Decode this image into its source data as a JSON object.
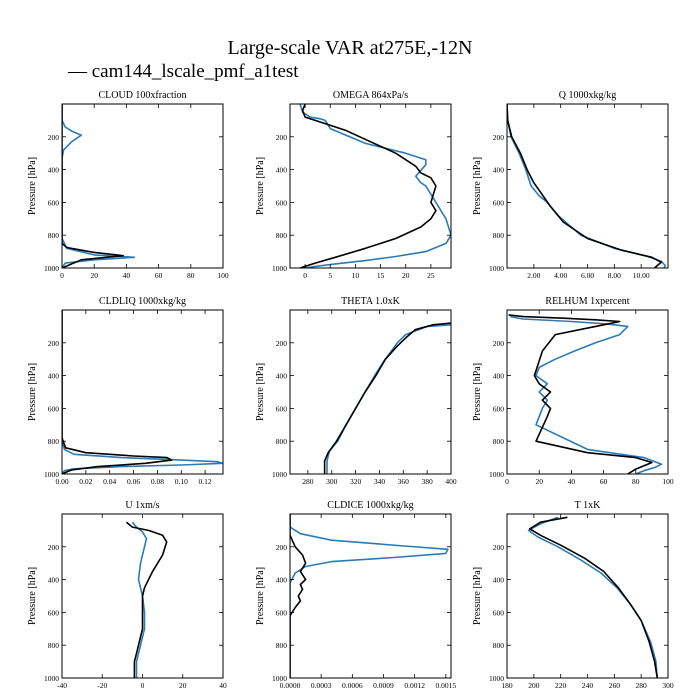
{
  "figure": {
    "title": "Large-scale VAR at275E,-12N",
    "legend_label": "— cam144_lscale_pmf_a1test",
    "legend_color": "#2b7bb9",
    "control_color": "#000000"
  },
  "chart_data": [
    {
      "type": "line",
      "title": "CLOUD  100xfraction",
      "xlim": [
        0,
        100
      ],
      "ylim": [
        1000,
        0
      ],
      "ylabel": "Pressure [hPa]",
      "xticks": [
        "0",
        "20",
        "40",
        "60",
        "80",
        "100"
      ],
      "xtick_values": [
        0,
        20,
        40,
        60,
        80,
        100
      ],
      "yticks": [
        "200",
        "400",
        "600",
        "800",
        "1000"
      ],
      "ytick_values": [
        200,
        400,
        600,
        800,
        1000
      ],
      "series": [
        {
          "color": "#2b7bb9",
          "x": [
            0,
            0,
            2,
            6,
            12,
            6,
            1,
            0,
            0,
            0,
            3,
            20,
            45,
            20,
            2,
            0
          ],
          "y": [
            0,
            100,
            140,
            165,
            190,
            230,
            280,
            330,
            600,
            820,
            880,
            920,
            935,
            950,
            970,
            1000
          ]
        },
        {
          "color": "#000000",
          "x": [
            0,
            0,
            0,
            3,
            20,
            38,
            12,
            0
          ],
          "y": [
            0,
            600,
            850,
            875,
            905,
            925,
            950,
            1000
          ]
        }
      ]
    },
    {
      "type": "line",
      "title": "OMEGA  864xPa/s",
      "xlim": [
        -3,
        29
      ],
      "ylim": [
        1000,
        0
      ],
      "ylabel": "Pressure [hPa]",
      "xticks": [
        "0",
        "5",
        "10",
        "15",
        "20",
        "25"
      ],
      "xtick_values": [
        0,
        5,
        10,
        15,
        20,
        25
      ],
      "yticks": [
        "200",
        "400",
        "600",
        "800",
        "1000"
      ],
      "ytick_values": [
        200,
        400,
        600,
        800,
        1000
      ],
      "series": [
        {
          "color": "#2b7bb9",
          "x": [
            -1,
            -0.5,
            1,
            3,
            4,
            5,
            12,
            20,
            24,
            24,
            22,
            23,
            24,
            26,
            28,
            29,
            28,
            24,
            18,
            12,
            6,
            2,
            0,
            -1
          ],
          "y": [
            0,
            50,
            80,
            90,
            100,
            150,
            240,
            300,
            340,
            370,
            440,
            480,
            500,
            600,
            700,
            800,
            850,
            900,
            930,
            955,
            975,
            990,
            1000,
            1000
          ]
        },
        {
          "color": "#000000",
          "x": [
            0,
            -0.5,
            0,
            2,
            8,
            18,
            22,
            23,
            25,
            26,
            25,
            26,
            25,
            23,
            18,
            12,
            6,
            2,
            0,
            -1
          ],
          "y": [
            0,
            40,
            80,
            100,
            160,
            300,
            380,
            420,
            450,
            500,
            600,
            650,
            700,
            750,
            820,
            880,
            935,
            970,
            990,
            1000
          ]
        }
      ]
    },
    {
      "type": "line",
      "title": "Q  1000xkg/kg",
      "xlim": [
        0,
        12
      ],
      "ylim": [
        1000,
        0
      ],
      "ylabel": "Pressure [hPa]",
      "xticks": [
        "2.00",
        "4.00",
        "6.00",
        "8.00",
        "10.00"
      ],
      "xtick_values": [
        2,
        4,
        6,
        8,
        10
      ],
      "yticks": [
        "200",
        "400",
        "600",
        "800",
        "1000"
      ],
      "ytick_values": [
        200,
        400,
        600,
        800,
        1000
      ],
      "series": [
        {
          "color": "#2b7bb9",
          "x": [
            0,
            0.05,
            0.3,
            0.9,
            1.4,
            1.8,
            2.4,
            3.0,
            3.8,
            5.5,
            8.0,
            10.5,
            11.5,
            11.8,
            11.7
          ],
          "y": [
            0,
            100,
            200,
            300,
            400,
            500,
            560,
            600,
            680,
            800,
            880,
            930,
            960,
            985,
            1000
          ]
        },
        {
          "color": "#000000",
          "x": [
            0,
            0.05,
            0.35,
            1.0,
            1.5,
            2.0,
            2.6,
            3.2,
            4.2,
            6.0,
            8.5,
            10.8,
            11.5,
            11.2,
            11.0
          ],
          "y": [
            0,
            100,
            200,
            300,
            400,
            480,
            550,
            620,
            720,
            820,
            890,
            935,
            965,
            985,
            1000
          ]
        }
      ]
    },
    {
      "type": "line",
      "title": "CLDLIQ  1000xkg/kg",
      "xlim": [
        0,
        0.135
      ],
      "ylim": [
        1000,
        0
      ],
      "ylabel": "Pressure [hPa]",
      "xticks": [
        "0.00",
        "0.02",
        "0.04",
        "0.06",
        "0.08",
        "0.10",
        "0.12"
      ],
      "xtick_values": [
        0,
        0.02,
        0.04,
        0.06,
        0.08,
        0.1,
        0.12
      ],
      "yticks": [
        "200",
        "400",
        "600",
        "800",
        "1000"
      ],
      "ytick_values": [
        200,
        400,
        600,
        800,
        1000
      ],
      "series": [
        {
          "color": "#2b7bb9",
          "x": [
            0,
            0,
            0.002,
            0.01,
            0.05,
            0.1,
            0.13,
            0.135,
            0.1,
            0.05,
            0.01,
            0.002,
            0
          ],
          "y": [
            0,
            800,
            850,
            880,
            900,
            915,
            925,
            935,
            945,
            955,
            968,
            980,
            1000
          ]
        },
        {
          "color": "#000000",
          "x": [
            0,
            0,
            0.003,
            0.02,
            0.06,
            0.088,
            0.092,
            0.07,
            0.03,
            0.008,
            0
          ],
          "y": [
            0,
            780,
            840,
            870,
            890,
            900,
            915,
            935,
            955,
            975,
            1000
          ]
        }
      ]
    },
    {
      "type": "line",
      "title": "THETA  1.0xK",
      "xlim": [
        265,
        400
      ],
      "ylim": [
        1000,
        0
      ],
      "ylabel": "Pressure [hPa]",
      "xticks": [
        "280",
        "300",
        "320",
        "340",
        "360",
        "380",
        "400"
      ],
      "xtick_values": [
        280,
        300,
        320,
        340,
        360,
        380,
        400
      ],
      "yticks": [
        "200",
        "400",
        "600",
        "800",
        "1000"
      ],
      "ytick_values": [
        200,
        400,
        600,
        800,
        1000
      ],
      "series": [
        {
          "color": "#2b7bb9",
          "x": [
            400,
            380,
            362,
            355,
            350,
            343,
            336,
            328,
            320,
            312,
            305,
            298,
            296,
            296
          ],
          "y": [
            90,
            100,
            150,
            200,
            250,
            320,
            400,
            500,
            600,
            700,
            800,
            860,
            920,
            1000
          ]
        },
        {
          "color": "#000000",
          "x": [
            400,
            385,
            370,
            362,
            355,
            345,
            337,
            328,
            320,
            312,
            304,
            297,
            294,
            294
          ],
          "y": [
            80,
            90,
            120,
            170,
            220,
            300,
            400,
            500,
            600,
            700,
            800,
            870,
            920,
            1000
          ]
        }
      ]
    },
    {
      "type": "line",
      "title": "RELHUM  1xpercent",
      "xlim": [
        0,
        100
      ],
      "ylim": [
        1000,
        0
      ],
      "ylabel": "Pressure [hPa]",
      "xticks": [
        "0",
        "20",
        "40",
        "60",
        "80",
        "100"
      ],
      "xtick_values": [
        0,
        20,
        40,
        60,
        80,
        100
      ],
      "yticks": [
        "200",
        "400",
        "600",
        "800",
        "1000"
      ],
      "ytick_values": [
        200,
        400,
        600,
        800,
        1000
      ],
      "series": [
        {
          "color": "#2b7bb9",
          "x": [
            2,
            10,
            40,
            62,
            75,
            70,
            55,
            42,
            30,
            20,
            18,
            25,
            20,
            25,
            22,
            18,
            50,
            85,
            96,
            92,
            85,
            80
          ],
          "y": [
            40,
            55,
            70,
            85,
            100,
            150,
            200,
            250,
            300,
            350,
            400,
            450,
            500,
            550,
            600,
            700,
            850,
            900,
            940,
            960,
            980,
            1000
          ]
        },
        {
          "color": "#000000",
          "x": [
            1,
            10,
            35,
            55,
            70,
            60,
            45,
            30,
            22,
            17,
            20,
            27,
            22,
            27,
            25,
            18,
            50,
            80,
            90,
            80,
            75
          ],
          "y": [
            30,
            40,
            50,
            60,
            70,
            90,
            120,
            150,
            250,
            400,
            450,
            500,
            550,
            600,
            650,
            800,
            870,
            900,
            930,
            970,
            1000
          ]
        }
      ]
    },
    {
      "type": "line",
      "title": "U  1xm/s",
      "xlim": [
        -40,
        40
      ],
      "ylim": [
        1000,
        0
      ],
      "ylabel": "Pressure [hPa]",
      "xticks": [
        "-40",
        "-20",
        "0",
        "20",
        "40"
      ],
      "xtick_values": [
        -40,
        -20,
        0,
        20,
        40
      ],
      "yticks": [
        "200",
        "400",
        "600",
        "800",
        "1000"
      ],
      "ytick_values": [
        200,
        400,
        600,
        800,
        1000
      ],
      "series": [
        {
          "color": "#2b7bb9",
          "x": [
            -5,
            -3,
            0,
            2,
            1,
            -1,
            -2,
            0,
            1,
            1,
            0,
            -1,
            -2,
            -3,
            -3
          ],
          "y": [
            50,
            80,
            110,
            150,
            200,
            300,
            400,
            500,
            600,
            700,
            750,
            800,
            850,
            900,
            1000
          ]
        },
        {
          "color": "#000000",
          "x": [
            -8,
            -5,
            3,
            10,
            12,
            10,
            5,
            1,
            0,
            0,
            0,
            -1,
            -2,
            -3,
            -4,
            -4
          ],
          "y": [
            50,
            80,
            100,
            130,
            170,
            250,
            350,
            450,
            500,
            600,
            700,
            750,
            800,
            850,
            900,
            1000
          ]
        }
      ]
    },
    {
      "type": "line",
      "title": "CLDICE  1000xkg/kg",
      "xlim": [
        0,
        0.00155
      ],
      "ylim": [
        1000,
        0
      ],
      "ylabel": "Pressure [hPa]",
      "xticks": [
        "0.0000",
        "0.0003",
        "0.0006",
        "0.0009",
        "0.0012",
        "0.0015"
      ],
      "xtick_values": [
        0,
        0.0003,
        0.0006,
        0.0009,
        0.0012,
        0.0015
      ],
      "yticks": [
        "200",
        "400",
        "600",
        "800",
        "1000"
      ],
      "ytick_values": [
        200,
        400,
        600,
        800,
        1000
      ],
      "series": [
        {
          "color": "#2b7bb9",
          "x": [
            0,
            0,
            0.0001,
            0.0004,
            0.0011,
            0.00152,
            0.0015,
            0.001,
            0.0004,
            0.00015,
            5e-05,
            0,
            0
          ],
          "y": [
            0,
            80,
            120,
            160,
            195,
            215,
            240,
            265,
            290,
            320,
            360,
            420,
            1000
          ]
        },
        {
          "color": "#000000",
          "x": [
            0,
            0,
            5e-05,
            0.00012,
            0.00015,
            0.0001,
            0.00015,
            0.0001,
            0.00012,
            8e-05,
            0.0001,
            5e-05,
            0,
            0
          ],
          "y": [
            0,
            130,
            200,
            250,
            300,
            350,
            400,
            430,
            460,
            500,
            530,
            570,
            620,
            1000
          ]
        }
      ]
    },
    {
      "type": "line",
      "title": "T  1xK",
      "xlim": [
        180,
        300
      ],
      "ylim": [
        1000,
        0
      ],
      "ylabel": "Pressure [hPa]",
      "xticks": [
        "180",
        "200",
        "220",
        "240",
        "260",
        "280",
        "300"
      ],
      "xtick_values": [
        180,
        200,
        220,
        240,
        260,
        280,
        300
      ],
      "yticks": [
        "200",
        "400",
        "600",
        "800",
        "1000"
      ],
      "ytick_values": [
        200,
        400,
        600,
        800,
        1000
      ],
      "series": [
        {
          "color": "#2b7bb9",
          "x": [
            218,
            205,
            196,
            203,
            218,
            235,
            250,
            262,
            272,
            280,
            287,
            291,
            292
          ],
          "y": [
            20,
            60,
            100,
            140,
            200,
            280,
            360,
            450,
            550,
            650,
            780,
            900,
            1000
          ]
        },
        {
          "color": "#000000",
          "x": [
            225,
            205,
            197,
            205,
            220,
            238,
            252,
            263,
            272,
            280,
            286,
            290,
            292
          ],
          "y": [
            20,
            50,
            90,
            130,
            190,
            270,
            350,
            450,
            550,
            650,
            780,
            900,
            1000
          ]
        }
      ]
    }
  ]
}
